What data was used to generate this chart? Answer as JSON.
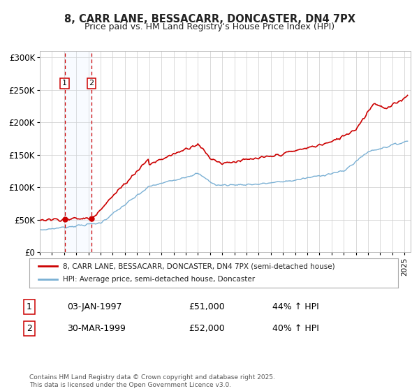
{
  "title": "8, CARR LANE, BESSACARR, DONCASTER, DN4 7PX",
  "subtitle": "Price paid vs. HM Land Registry's House Price Index (HPI)",
  "background_color": "#ffffff",
  "grid_color": "#cccccc",
  "purchase1": {
    "date_num": 1997.04,
    "price": 51000,
    "label": "1",
    "hpi_change": "44% ↑ HPI",
    "date_str": "03-JAN-1997"
  },
  "purchase2": {
    "date_num": 1999.25,
    "price": 52000,
    "label": "2",
    "hpi_change": "40% ↑ HPI",
    "date_str": "30-MAR-1999"
  },
  "house_color": "#cc0000",
  "hpi_color": "#7ab0d4",
  "shade_color": "#ddeeff",
  "dashed_color": "#cc0000",
  "legend_house": "8, CARR LANE, BESSACARR, DONCASTER, DN4 7PX (semi-detached house)",
  "legend_hpi": "HPI: Average price, semi-detached house, Doncaster",
  "footer": "Contains HM Land Registry data © Crown copyright and database right 2025.\nThis data is licensed under the Open Government Licence v3.0.",
  "xlim": [
    1995.0,
    2025.5
  ],
  "ylim": [
    0,
    310000
  ],
  "yticks": [
    0,
    50000,
    100000,
    150000,
    200000,
    250000,
    300000
  ],
  "ytick_labels": [
    "£0",
    "£50K",
    "£100K",
    "£150K",
    "£200K",
    "£250K",
    "£300K"
  ],
  "xticks": [
    1995,
    1996,
    1997,
    1998,
    1999,
    2000,
    2001,
    2002,
    2003,
    2004,
    2005,
    2006,
    2007,
    2008,
    2009,
    2010,
    2011,
    2012,
    2013,
    2014,
    2015,
    2016,
    2017,
    2018,
    2019,
    2020,
    2021,
    2022,
    2023,
    2024,
    2025
  ]
}
